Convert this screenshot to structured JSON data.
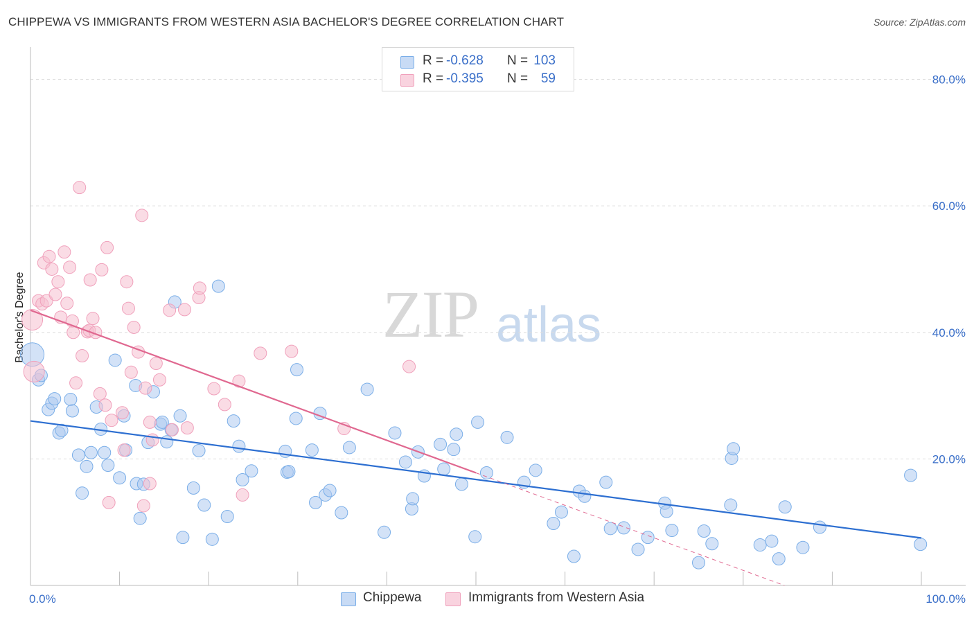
{
  "title": "CHIPPEWA VS IMMIGRANTS FROM WESTERN ASIA BACHELOR'S DEGREE CORRELATION CHART",
  "source": "Source: ZipAtlas.com",
  "watermark": {
    "zip": "ZIP",
    "atlas": "atlas"
  },
  "legend": {
    "rows": [
      {
        "r_label": "R =",
        "r_value": "-0.628",
        "n_label": "N =",
        "n_value": "103",
        "color": "#aecbf0"
      },
      {
        "r_label": "R =",
        "r_value": "-0.395",
        "n_label": "N =",
        "n_value": "59",
        "color": "#f5c0d0"
      }
    ]
  },
  "bottom_legend": {
    "items": [
      {
        "label": "Chippewa",
        "color": "#aecbf0"
      },
      {
        "label": "Immigrants from Western Asia",
        "color": "#f5c0d0"
      }
    ]
  },
  "chart_data": {
    "type": "scatter",
    "title": "CHIPPEWA VS IMMIGRANTS FROM WESTERN ASIA BACHELOR'S DEGREE CORRELATION CHART",
    "xlabel": "",
    "ylabel": "Bachelor's Degree",
    "xlim": [
      0,
      100
    ],
    "ylim": [
      0,
      84
    ],
    "x_tick_labels": [
      "0.0%",
      "100.0%"
    ],
    "y_ticks": [
      20,
      40,
      60,
      80
    ],
    "y_tick_labels": [
      "20.0%",
      "40.0%",
      "60.0%",
      "80.0%"
    ],
    "grid": true,
    "legend_position": "top-center",
    "series": [
      {
        "name": "Chippewa",
        "color": "#7aaee8",
        "fill": "#aecbf0",
        "trend_color": "#2d6fd1",
        "trend": {
          "x0": 0,
          "y0": 26.0,
          "x1": 100,
          "y1": 7.5
        },
        "points": [
          [
            0.2,
            36.5
          ],
          [
            0.9,
            32.5
          ],
          [
            1.2,
            33.2
          ],
          [
            2,
            27.8
          ],
          [
            2.4,
            28.8
          ],
          [
            2.7,
            29.5
          ],
          [
            3.2,
            24.1
          ],
          [
            3.5,
            24.5
          ],
          [
            4.5,
            29.4
          ],
          [
            4.7,
            27.6
          ],
          [
            5.4,
            20.6
          ],
          [
            5.8,
            14.6
          ],
          [
            6.3,
            18.8
          ],
          [
            6.8,
            21.0
          ],
          [
            7.4,
            28.2
          ],
          [
            7.9,
            24.7
          ],
          [
            8.3,
            21.0
          ],
          [
            8.7,
            19.0
          ],
          [
            9.5,
            35.6
          ],
          [
            10,
            17.0
          ],
          [
            10.5,
            26.8
          ],
          [
            10.7,
            21.4
          ],
          [
            11.8,
            31.6
          ],
          [
            11.9,
            16.1
          ],
          [
            12.3,
            10.6
          ],
          [
            12.7,
            16.0
          ],
          [
            13.2,
            22.6
          ],
          [
            13.8,
            30.6
          ],
          [
            14.6,
            25.5
          ],
          [
            14.8,
            25.8
          ],
          [
            15.3,
            22.7
          ],
          [
            15.8,
            24.6
          ],
          [
            16.2,
            44.8
          ],
          [
            16.8,
            26.8
          ],
          [
            17.1,
            7.6
          ],
          [
            18.3,
            15.4
          ],
          [
            18.9,
            21.3
          ],
          [
            19.5,
            12.7
          ],
          [
            20.4,
            7.3
          ],
          [
            21.1,
            47.3
          ],
          [
            22.1,
            10.9
          ],
          [
            22.8,
            26.0
          ],
          [
            23.4,
            22.0
          ],
          [
            23.8,
            16.7
          ],
          [
            24.8,
            18.1
          ],
          [
            28.6,
            21.2
          ],
          [
            28.8,
            17.9
          ],
          [
            29.0,
            18.0
          ],
          [
            29.8,
            26.4
          ],
          [
            29.9,
            34.1
          ],
          [
            32,
            13.1
          ],
          [
            31.6,
            21.4
          ],
          [
            32.5,
            27.2
          ],
          [
            33.1,
            14.3
          ],
          [
            33.6,
            15.0
          ],
          [
            34.9,
            11.5
          ],
          [
            35.8,
            21.8
          ],
          [
            37.8,
            31.0
          ],
          [
            39.7,
            8.4
          ],
          [
            40.9,
            24.1
          ],
          [
            42.1,
            19.5
          ],
          [
            42.8,
            12.1
          ],
          [
            42.9,
            13.7
          ],
          [
            43.5,
            21.1
          ],
          [
            44.2,
            17.3
          ],
          [
            46.0,
            22.3
          ],
          [
            46.4,
            18.4
          ],
          [
            47.5,
            21.5
          ],
          [
            47.8,
            23.9
          ],
          [
            48.4,
            16.0
          ],
          [
            49.9,
            7.7
          ],
          [
            50.2,
            25.8
          ],
          [
            51.2,
            17.8
          ],
          [
            53.5,
            23.4
          ],
          [
            55.4,
            16.3
          ],
          [
            56.7,
            18.2
          ],
          [
            58.7,
            9.8
          ],
          [
            59.6,
            11.6
          ],
          [
            61.0,
            4.6
          ],
          [
            61.6,
            14.9
          ],
          [
            62.2,
            14.1
          ],
          [
            64.6,
            16.3
          ],
          [
            65.1,
            9.0
          ],
          [
            66.6,
            9.1
          ],
          [
            68.2,
            5.7
          ],
          [
            69.3,
            7.6
          ],
          [
            71.2,
            13.0
          ],
          [
            71.4,
            11.7
          ],
          [
            72.0,
            8.7
          ],
          [
            75.0,
            3.6
          ],
          [
            75.6,
            8.6
          ],
          [
            76.5,
            6.6
          ],
          [
            78.6,
            12.7
          ],
          [
            78.7,
            20.1
          ],
          [
            78.9,
            21.6
          ],
          [
            81.9,
            6.4
          ],
          [
            83.2,
            7.0
          ],
          [
            84.0,
            4.2
          ],
          [
            84.7,
            12.4
          ],
          [
            86.7,
            6.0
          ],
          [
            88.6,
            9.2
          ],
          [
            98.8,
            17.4
          ],
          [
            99.9,
            6.5
          ]
        ]
      },
      {
        "name": "Immigrants from Western Asia",
        "color": "#f0a0bb",
        "fill": "#f5c0d0",
        "trend_color": "#e06890",
        "trend": {
          "x0": 0,
          "y0": 43.5,
          "x1": 50,
          "y1": 17.8
        },
        "trend_dashed_to": {
          "x": 100,
          "y": -8.0
        },
        "points": [
          [
            0.2,
            42.0
          ],
          [
            0.4,
            33.8
          ],
          [
            0.9,
            45.0
          ],
          [
            1.3,
            44.5
          ],
          [
            1.5,
            51.0
          ],
          [
            1.8,
            45.0
          ],
          [
            2.1,
            52.0
          ],
          [
            2.4,
            50.0
          ],
          [
            2.8,
            46.0
          ],
          [
            3.1,
            48.0
          ],
          [
            3.4,
            42.4
          ],
          [
            3.8,
            52.7
          ],
          [
            4.1,
            44.6
          ],
          [
            4.4,
            50.3
          ],
          [
            4.7,
            41.8
          ],
          [
            4.8,
            40.0
          ],
          [
            5.1,
            32.0
          ],
          [
            5.5,
            62.9
          ],
          [
            5.8,
            36.3
          ],
          [
            6.4,
            40.1
          ],
          [
            6.6,
            40.3
          ],
          [
            6.7,
            48.3
          ],
          [
            7.0,
            42.2
          ],
          [
            7.3,
            40.0
          ],
          [
            7.8,
            30.3
          ],
          [
            8.0,
            49.9
          ],
          [
            8.4,
            28.5
          ],
          [
            8.6,
            53.4
          ],
          [
            8.8,
            13.1
          ],
          [
            9.1,
            26.1
          ],
          [
            10.3,
            27.3
          ],
          [
            10.5,
            21.4
          ],
          [
            10.8,
            48.0
          ],
          [
            11.0,
            43.8
          ],
          [
            11.3,
            33.7
          ],
          [
            11.6,
            40.8
          ],
          [
            12.1,
            36.9
          ],
          [
            12.5,
            58.5
          ],
          [
            12.7,
            12.6
          ],
          [
            12.9,
            31.2
          ],
          [
            13.4,
            16.1
          ],
          [
            13.4,
            25.8
          ],
          [
            13.7,
            23.0
          ],
          [
            14.1,
            35.1
          ],
          [
            14.5,
            32.5
          ],
          [
            15.6,
            43.5
          ],
          [
            15.9,
            24.6
          ],
          [
            17.3,
            43.6
          ],
          [
            17.6,
            24.9
          ],
          [
            18.9,
            45.5
          ],
          [
            19.0,
            47.0
          ],
          [
            20.6,
            31.1
          ],
          [
            21.8,
            28.6
          ],
          [
            23.4,
            32.3
          ],
          [
            23.8,
            14.3
          ],
          [
            25.8,
            36.7
          ],
          [
            29.3,
            37.0
          ],
          [
            35.2,
            24.8
          ],
          [
            42.5,
            34.6
          ]
        ]
      }
    ]
  }
}
